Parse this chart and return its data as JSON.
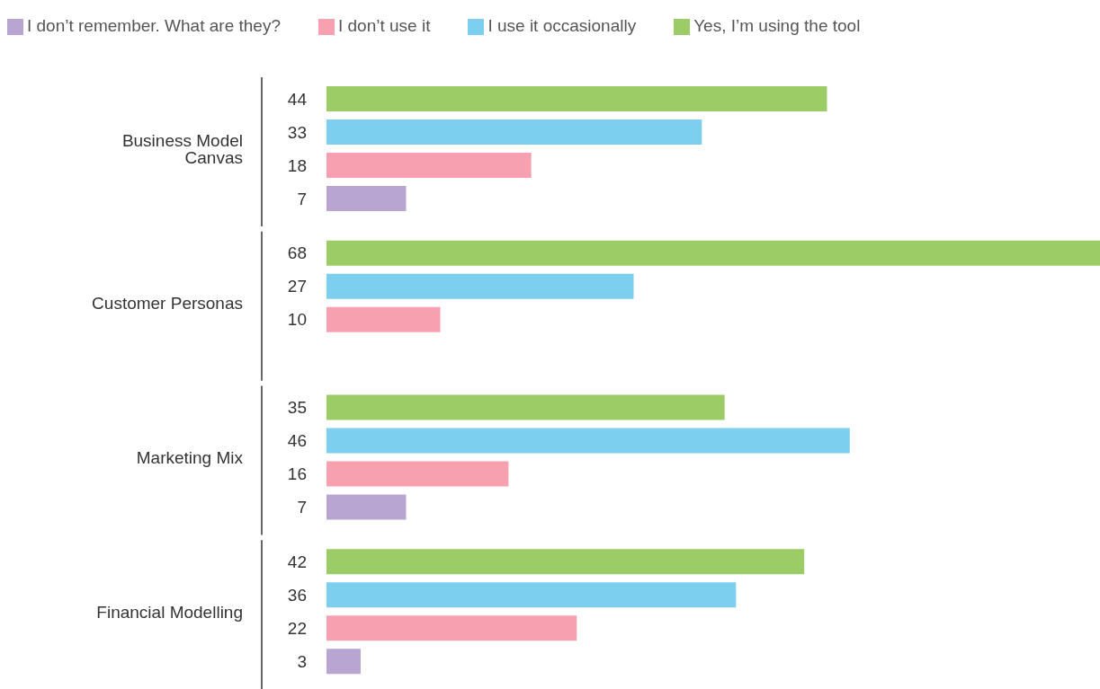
{
  "chart_data": {
    "type": "bar",
    "orientation": "horizontal",
    "categories": [
      "Business Model Canvas",
      "Customer Personas",
      "Marketing Mix",
      "Financial Modelling"
    ],
    "series": [
      {
        "name": "Yes, I’m using the tool",
        "color": "#9ccc65",
        "values": [
          44,
          68,
          35,
          42
        ]
      },
      {
        "name": "I use it  occasionally",
        "color": "#7dcfef",
        "values": [
          33,
          27,
          46,
          36
        ]
      },
      {
        "name": "I don’t use it",
        "color": "#f6a0b0",
        "values": [
          18,
          10,
          16,
          22
        ]
      },
      {
        "name": "I don’t remember. What are they?",
        "color": "#b8a5d1",
        "values": [
          7,
          null,
          7,
          3
        ]
      }
    ],
    "data_labels": true,
    "legend": "top left",
    "grid": false
  }
}
